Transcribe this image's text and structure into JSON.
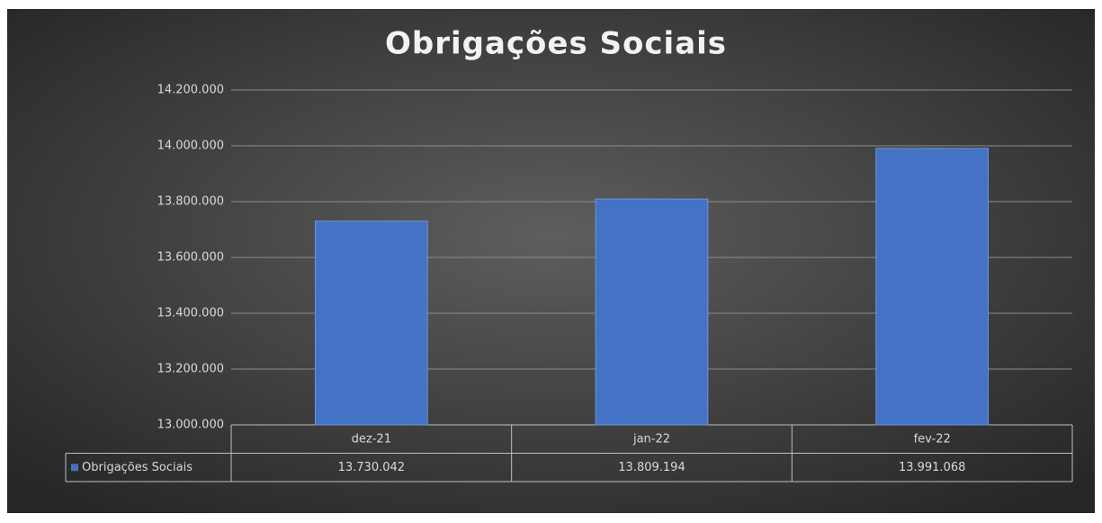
{
  "chart_data": {
    "type": "bar",
    "title": "Obrigações Sociais",
    "categories": [
      "dez-21",
      "jan-22",
      "fev-22"
    ],
    "series": [
      {
        "name": "Obrigações Sociais",
        "color": "#4472c4",
        "values": [
          13730042,
          13809194,
          13991068
        ],
        "value_labels": [
          "13.730.042",
          "13.809.194",
          "13.991.068"
        ]
      }
    ],
    "ylim": [
      13000000,
      14200000
    ],
    "yticks": [
      {
        "value": 13000000,
        "label": "13.000.000"
      },
      {
        "value": 13200000,
        "label": "13.200.000"
      },
      {
        "value": 13400000,
        "label": "13.400.000"
      },
      {
        "value": 13600000,
        "label": "13.600.000"
      },
      {
        "value": 13800000,
        "label": "13.800.000"
      },
      {
        "value": 14000000,
        "label": "14.000.000"
      },
      {
        "value": 14200000,
        "label": "14.200.000"
      }
    ],
    "grid": true
  }
}
